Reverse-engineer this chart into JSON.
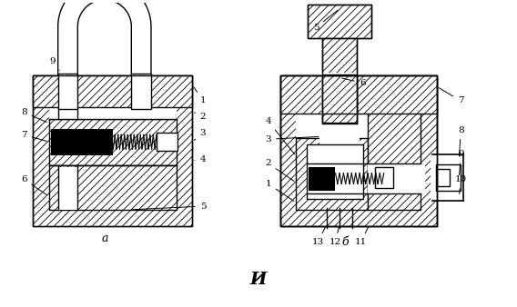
{
  "title": "И",
  "label_a": "а",
  "label_b": "б",
  "bg_color": "#ffffff"
}
